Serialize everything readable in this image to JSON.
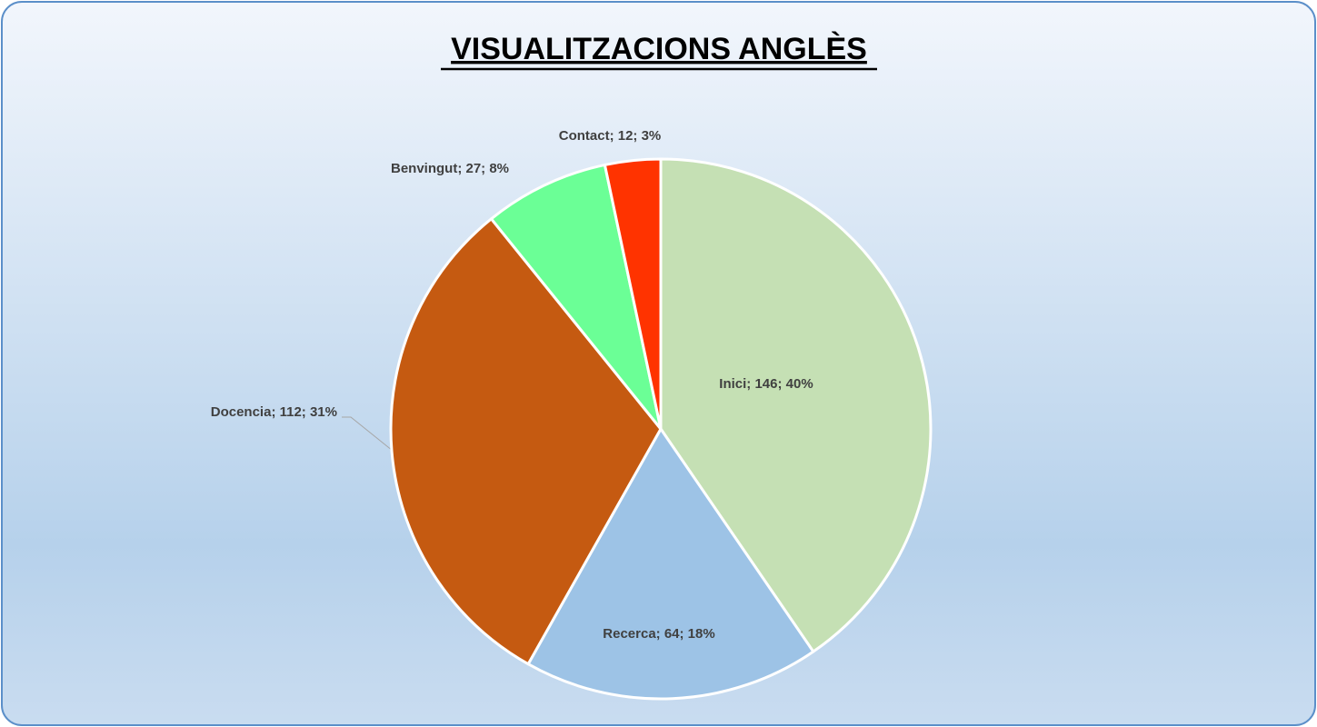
{
  "chart_data": {
    "type": "pie",
    "title": "VISUALITZACIONS ANGLÈS",
    "categories": [
      "Inici",
      "Recerca",
      "Docencia",
      "Benvingut",
      "Contact"
    ],
    "values": [
      146,
      64,
      112,
      27,
      12
    ],
    "value_labels": [
      "Inici; 146; 40%",
      "Recerca; 64; 18%",
      "Docencia; 112; 31%",
      "Benvingut; 27; 8%",
      "Contact; 12; 3%"
    ],
    "colors": [
      "#c5e0b4",
      "#9dc3e6",
      "#c55a11",
      "#6bff96",
      "#ff3300"
    ]
  }
}
